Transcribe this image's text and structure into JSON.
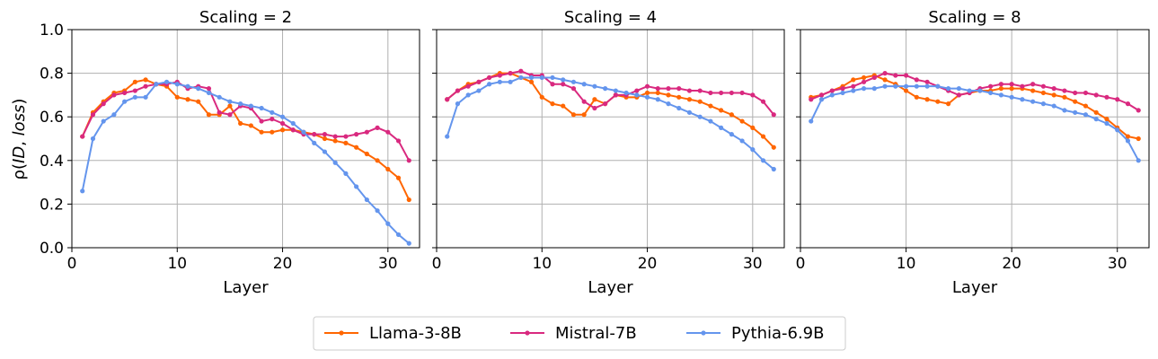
{
  "chart_data": {
    "type": "line",
    "ylabel": "ρ(ID, loss)",
    "ylabel_plain": "ρ(",
    "ylabel_id": "ID",
    "ylabel_sep": ", ",
    "ylabel_loss": "loss",
    "ylabel_close": ")",
    "xlabel": "Layer",
    "ylim": [
      0,
      1
    ],
    "xlim": [
      0,
      33
    ],
    "yticks": [
      "0.0",
      "0.2",
      "0.4",
      "0.6",
      "0.8",
      "1.0"
    ],
    "xticks": [
      "0",
      "10",
      "20",
      "30"
    ],
    "grid": true,
    "legend_placement": "bottom-center",
    "x": [
      1,
      2,
      3,
      4,
      5,
      6,
      7,
      8,
      9,
      10,
      11,
      12,
      13,
      14,
      15,
      16,
      17,
      18,
      19,
      20,
      21,
      22,
      23,
      24,
      25,
      26,
      27,
      28,
      29,
      30,
      31,
      32
    ],
    "series_style": [
      {
        "name": "Llama-3-8B",
        "color": "#ff6600"
      },
      {
        "name": "Mistral-7B",
        "color": "#d9297f"
      },
      {
        "name": "Pythia-6.9B",
        "color": "#6495ed"
      }
    ],
    "panels": [
      {
        "title": "Scaling = 2",
        "series": [
          {
            "name": "Llama-3-8B",
            "values": [
              0.51,
              0.62,
              0.67,
              0.71,
              0.72,
              0.76,
              0.77,
              0.75,
              0.74,
              0.69,
              0.68,
              0.67,
              0.61,
              0.61,
              0.65,
              0.57,
              0.56,
              0.53,
              0.53,
              0.54,
              0.54,
              0.53,
              0.52,
              0.5,
              0.49,
              0.48,
              0.46,
              0.43,
              0.4,
              0.36,
              0.32,
              0.22
            ]
          },
          {
            "name": "Mistral-7B",
            "values": [
              0.51,
              0.61,
              0.66,
              0.7,
              0.71,
              0.72,
              0.74,
              0.75,
              0.75,
              0.76,
              0.73,
              0.74,
              0.73,
              0.62,
              0.61,
              0.65,
              0.64,
              0.58,
              0.59,
              0.57,
              0.54,
              0.52,
              0.52,
              0.52,
              0.51,
              0.51,
              0.52,
              0.53,
              0.55,
              0.53,
              0.49,
              0.4
            ]
          },
          {
            "name": "Pythia-6.9B",
            "values": [
              0.26,
              0.5,
              0.58,
              0.61,
              0.67,
              0.69,
              0.69,
              0.75,
              0.76,
              0.75,
              0.74,
              0.73,
              0.71,
              0.69,
              0.67,
              0.66,
              0.65,
              0.64,
              0.62,
              0.6,
              0.57,
              0.53,
              0.48,
              0.44,
              0.39,
              0.34,
              0.28,
              0.22,
              0.17,
              0.11,
              0.06,
              0.02
            ]
          }
        ]
      },
      {
        "title": "Scaling = 4",
        "series": [
          {
            "name": "Llama-3-8B",
            "values": [
              0.68,
              0.72,
              0.75,
              0.76,
              0.78,
              0.8,
              0.8,
              0.78,
              0.76,
              0.69,
              0.66,
              0.65,
              0.61,
              0.61,
              0.68,
              0.66,
              0.7,
              0.69,
              0.69,
              0.71,
              0.71,
              0.7,
              0.69,
              0.68,
              0.67,
              0.65,
              0.63,
              0.61,
              0.58,
              0.55,
              0.51,
              0.46
            ]
          },
          {
            "name": "Mistral-7B",
            "values": [
              0.68,
              0.72,
              0.74,
              0.76,
              0.78,
              0.79,
              0.8,
              0.81,
              0.79,
              0.79,
              0.75,
              0.75,
              0.73,
              0.67,
              0.64,
              0.66,
              0.7,
              0.7,
              0.72,
              0.74,
              0.73,
              0.73,
              0.73,
              0.72,
              0.72,
              0.71,
              0.71,
              0.71,
              0.71,
              0.7,
              0.67,
              0.61
            ]
          },
          {
            "name": "Pythia-6.9B",
            "values": [
              0.51,
              0.66,
              0.7,
              0.72,
              0.75,
              0.76,
              0.76,
              0.78,
              0.78,
              0.78,
              0.78,
              0.77,
              0.76,
              0.75,
              0.74,
              0.73,
              0.72,
              0.71,
              0.7,
              0.69,
              0.68,
              0.66,
              0.64,
              0.62,
              0.6,
              0.58,
              0.55,
              0.52,
              0.49,
              0.45,
              0.4,
              0.36
            ]
          }
        ]
      },
      {
        "title": "Scaling = 8",
        "series": [
          {
            "name": "Llama-3-8B",
            "values": [
              0.69,
              0.7,
              0.72,
              0.74,
              0.77,
              0.78,
              0.79,
              0.77,
              0.75,
              0.72,
              0.69,
              0.68,
              0.67,
              0.66,
              0.7,
              0.71,
              0.72,
              0.72,
              0.73,
              0.73,
              0.73,
              0.72,
              0.71,
              0.7,
              0.69,
              0.67,
              0.65,
              0.62,
              0.59,
              0.55,
              0.51,
              0.5
            ]
          },
          {
            "name": "Mistral-7B",
            "values": [
              0.68,
              0.7,
              0.72,
              0.73,
              0.74,
              0.76,
              0.78,
              0.8,
              0.79,
              0.79,
              0.77,
              0.76,
              0.74,
              0.72,
              0.7,
              0.71,
              0.73,
              0.74,
              0.75,
              0.75,
              0.74,
              0.75,
              0.74,
              0.73,
              0.72,
              0.71,
              0.71,
              0.7,
              0.69,
              0.68,
              0.66,
              0.63
            ]
          },
          {
            "name": "Pythia-6.9B",
            "values": [
              0.58,
              0.68,
              0.7,
              0.71,
              0.72,
              0.73,
              0.73,
              0.74,
              0.74,
              0.74,
              0.74,
              0.74,
              0.74,
              0.73,
              0.73,
              0.72,
              0.72,
              0.71,
              0.7,
              0.69,
              0.68,
              0.67,
              0.66,
              0.65,
              0.63,
              0.62,
              0.61,
              0.59,
              0.57,
              0.54,
              0.49,
              0.4
            ]
          }
        ]
      }
    ]
  }
}
